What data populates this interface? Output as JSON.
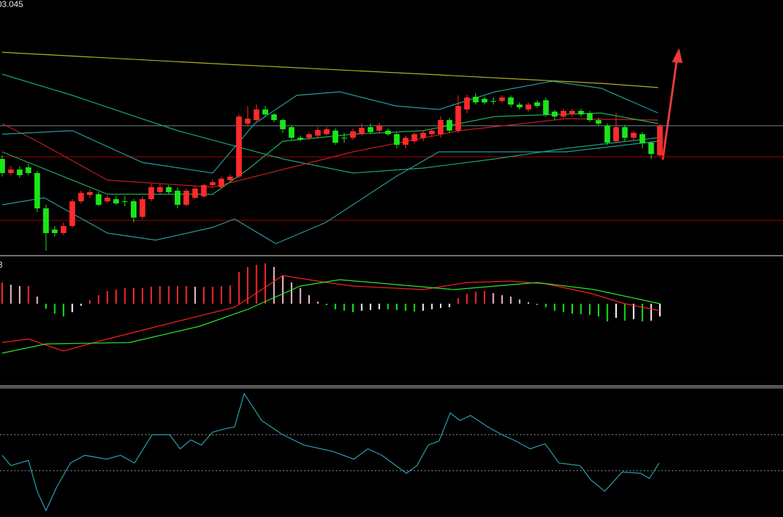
{
  "chart_data": [
    {
      "type": "candlestick",
      "title": "03.045",
      "open": [
        135,
        115,
        120,
        123,
        115,
        65,
        35,
        30,
        40,
        75,
        84,
        85,
        75,
        78,
        75,
        75,
        53,
        78,
        88,
        95,
        90,
        70,
        80,
        82,
        98,
        95,
        105,
        110,
        185,
        190,
        205,
        198,
        190,
        180,
        165,
        165,
        168,
        170,
        175,
        165,
        165,
        170,
        180,
        175,
        175,
        170,
        155,
        160,
        165,
        170,
        170,
        190,
        175,
        205,
        223,
        220,
        217,
        217,
        222,
        212,
        205,
        215,
        218,
        202,
        195,
        198,
        203,
        200,
        190,
        182,
        160,
        180,
        165,
        170,
        158,
        140
      ],
      "close": [
        115,
        120,
        112,
        115,
        65,
        30,
        30,
        40,
        75,
        87,
        88,
        70,
        80,
        72,
        75,
        52,
        78,
        95,
        95,
        88,
        70,
        90,
        93,
        98,
        102,
        107,
        110,
        195,
        192,
        205,
        198,
        190,
        177,
        165,
        162,
        170,
        176,
        177,
        158,
        165,
        174,
        179,
        173,
        182,
        170,
        155,
        165,
        170,
        172,
        175,
        190,
        175,
        210,
        222,
        215,
        215,
        217,
        222,
        212,
        208,
        212,
        210,
        198,
        195,
        203,
        203,
        198,
        190,
        185,
        158,
        180,
        165,
        172,
        157,
        142,
        182
      ],
      "high": [
        140,
        125,
        125,
        128,
        118,
        70,
        40,
        45,
        78,
        90,
        92,
        88,
        83,
        82,
        82,
        78,
        82,
        100,
        100,
        98,
        95,
        93,
        96,
        100,
        106,
        110,
        113,
        198,
        210,
        212,
        210,
        200,
        192,
        183,
        168,
        173,
        180,
        180,
        178,
        172,
        178,
        185,
        185,
        186,
        178,
        173,
        168,
        173,
        175,
        178,
        195,
        193,
        225,
        226,
        228,
        223,
        222,
        225,
        225,
        215,
        215,
        218,
        222,
        205,
        206,
        206,
        206,
        203,
        193,
        185,
        200,
        183,
        175,
        173,
        160,
        184
      ],
      "low": [
        110,
        112,
        108,
        112,
        60,
        5,
        25,
        27,
        38,
        72,
        80,
        68,
        72,
        70,
        68,
        45,
        50,
        75,
        85,
        85,
        65,
        68,
        78,
        80,
        96,
        93,
        102,
        108,
        182,
        188,
        195,
        187,
        172,
        162,
        160,
        162,
        165,
        168,
        155,
        158,
        162,
        168,
        170,
        172,
        168,
        150,
        150,
        157,
        160,
        166,
        165,
        172,
        172,
        200,
        212,
        212,
        212,
        214,
        208,
        205,
        202,
        207,
        195,
        190,
        193,
        195,
        195,
        187,
        182,
        155,
        157,
        160,
        162,
        150,
        135,
        138
      ],
      "up_color": "#ff2a2a",
      "down_color": "#19e619",
      "ylim": [
        2,
        360
      ],
      "hlines": [
        {
          "value": 182,
          "color": "#7a8794"
        },
        {
          "value": 138,
          "color": "#b00000"
        },
        {
          "value": 48,
          "color": "#b00000"
        }
      ],
      "lines": [
        {
          "color": "#b9b21f",
          "x": [
            0,
            24,
            48.2,
            68.3,
            74.8
          ],
          "values": [
            286,
            270,
            255,
            242,
            236
          ]
        },
        {
          "color": "#1fa37f",
          "x": [
            0,
            8,
            20,
            32,
            40,
            48,
            56.2,
            64.3,
            74.8
          ],
          "values": [
            255,
            225,
            175,
            135,
            115,
            122,
            135,
            150,
            165
          ]
        },
        {
          "color": "#c41f1f",
          "x": [
            0,
            4,
            12,
            24,
            32,
            40,
            52.2,
            64.3,
            74.8
          ],
          "values": [
            185,
            160,
            105,
            95,
            120,
            145,
            175,
            192,
            190
          ]
        },
        {
          "color": "#2a9d9d",
          "x": [
            0,
            8,
            16,
            24,
            28.8,
            33.6,
            38.5,
            44.9,
            49.8,
            56.2,
            62.7,
            68.3,
            74.8
          ],
          "values": [
            170,
            175,
            130,
            115,
            185,
            225,
            230,
            210,
            205,
            230,
            245,
            235,
            200
          ]
        },
        {
          "color": "#1fb35f",
          "x": [
            0,
            12,
            24,
            28,
            32,
            40,
            48,
            56.2,
            68.3,
            74.8
          ],
          "values": [
            145,
            85,
            85,
            120,
            160,
            170,
            175,
            195,
            200,
            185
          ]
        },
        {
          "color": "#2a9d9d",
          "x": [
            0,
            4.8,
            12,
            17.5,
            24,
            26.5,
            31.2,
            36.9,
            44.9,
            49.8,
            64.3,
            74.8
          ],
          "values": [
            70,
            80,
            30,
            20,
            38,
            50,
            15,
            45,
            110,
            145,
            145,
            160
          ]
        }
      ]
    },
    {
      "type": "macd",
      "label": "3",
      "histogram": [
        30,
        27,
        25,
        25,
        10,
        -7,
        -14,
        -18,
        -12,
        -3,
        5,
        12,
        18,
        20,
        22,
        22,
        22,
        24,
        25,
        25,
        25,
        25,
        24,
        24,
        24,
        25,
        26,
        45,
        52,
        55,
        57,
        52,
        40,
        30,
        22,
        12,
        3,
        -2,
        -8,
        -10,
        -12,
        -10,
        -9,
        -8,
        -8,
        -9,
        -10,
        -11,
        -10,
        -8,
        -6,
        -5,
        8,
        14,
        17,
        18,
        15,
        12,
        10,
        6,
        2,
        -2,
        -5,
        -10,
        -12,
        -14,
        -15,
        -16,
        -18,
        -25,
        -20,
        -24,
        -22,
        -25,
        -24,
        -18
      ],
      "ylim": [
        -115,
        65
      ],
      "lines": [
        {
          "color": "#ff2020",
          "x": [
            0,
            3,
            7,
            12,
            20,
            26.5,
            29,
            32,
            37,
            40,
            48,
            53,
            58,
            62,
            67,
            71,
            75
          ],
          "values": [
            -55,
            -50,
            -67,
            -50,
            -25,
            -5,
            15,
            40,
            30,
            25,
            20,
            30,
            32,
            28,
            15,
            0,
            -10
          ]
        },
        {
          "color": "#2ee82e",
          "x": [
            0,
            5,
            14.5,
            22.5,
            28,
            34,
            38.5,
            45,
            51.5,
            61,
            67.5,
            75
          ],
          "values": [
            -70,
            -57,
            -55,
            -32,
            -8,
            25,
            34,
            27,
            20,
            30,
            20,
            0
          ]
        }
      ]
    },
    {
      "type": "line",
      "ylim": [
        0,
        100
      ],
      "levels": [
        64,
        36
      ],
      "color": "#2aa3b3",
      "x": [
        0,
        1,
        3,
        4,
        5,
        6.2,
        7.8,
        9.4,
        11.9,
        13.5,
        15.1,
        17.1,
        19.1,
        20.3,
        21.5,
        22.7,
        24,
        25.6,
        26.5,
        27.6,
        29.6,
        32,
        34.4,
        37.7,
        40.1,
        41.7,
        43.3,
        46.1,
        47.3,
        48.6,
        49.8,
        51.1,
        52.2,
        53.4,
        55.4,
        57,
        58.6,
        60.2,
        61.9,
        63.5,
        65.9,
        67.1,
        68.7,
        70.7,
        72.8,
        73.8,
        74.9
      ],
      "values": [
        48,
        40,
        44,
        20,
        5,
        23,
        42,
        48,
        45,
        48,
        42,
        64,
        64,
        53,
        60,
        56,
        66,
        69,
        70,
        96,
        75,
        64,
        56,
        51,
        45,
        53,
        48,
        34,
        40,
        56,
        59,
        81,
        75,
        79,
        70,
        64,
        59,
        53,
        57,
        42,
        40,
        29,
        20,
        35,
        34,
        30,
        42
      ]
    }
  ]
}
